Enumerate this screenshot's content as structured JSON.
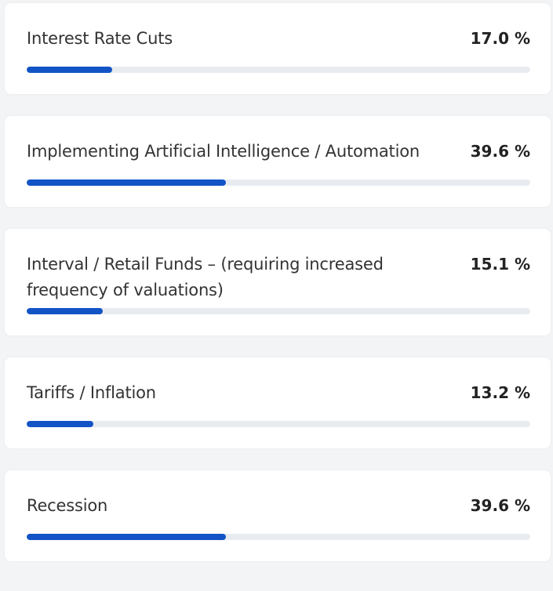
{
  "chart_data": {
    "type": "bar",
    "orientation": "horizontal",
    "categories": [
      "Interest Rate Cuts",
      "Implementing Artificial Intelligence / Automation",
      "Interval / Retail Funds – (requiring increased frequency of valuations)",
      "Tariffs / Inflation",
      "Recession"
    ],
    "values": [
      17.0,
      39.6,
      15.1,
      13.2,
      39.6
    ],
    "value_labels": [
      "17.0 %",
      "39.6 %",
      "15.1 %",
      "13.2 %",
      "39.6 %"
    ],
    "color": "#1254c6",
    "xlim": [
      0,
      100
    ]
  }
}
